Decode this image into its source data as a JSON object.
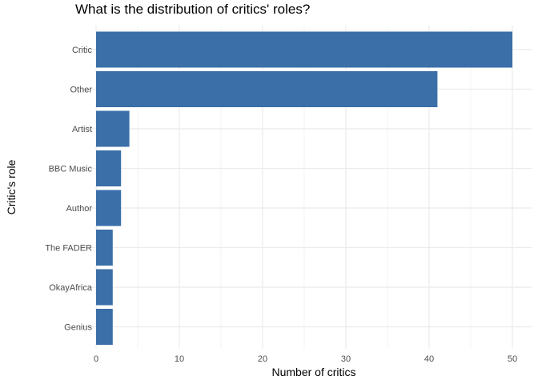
{
  "chart_data": {
    "type": "bar",
    "orientation": "horizontal",
    "title": "What is the distribution of critics' roles?",
    "xlabel": "Number of critics",
    "ylabel": "Critic's role",
    "categories": [
      "Critic",
      "Other",
      "Artist",
      "BBC Music",
      "Author",
      "The FADER",
      "OkayAfrica",
      "Genius"
    ],
    "values": [
      50,
      41,
      4,
      3,
      3,
      2,
      2,
      2
    ],
    "xlim": [
      0,
      50
    ],
    "xticks": [
      0,
      10,
      20,
      30,
      40,
      50
    ],
    "grid": true,
    "legend": "none",
    "bar_color": "#3a6fa8",
    "grid_color": "#ebebeb"
  }
}
